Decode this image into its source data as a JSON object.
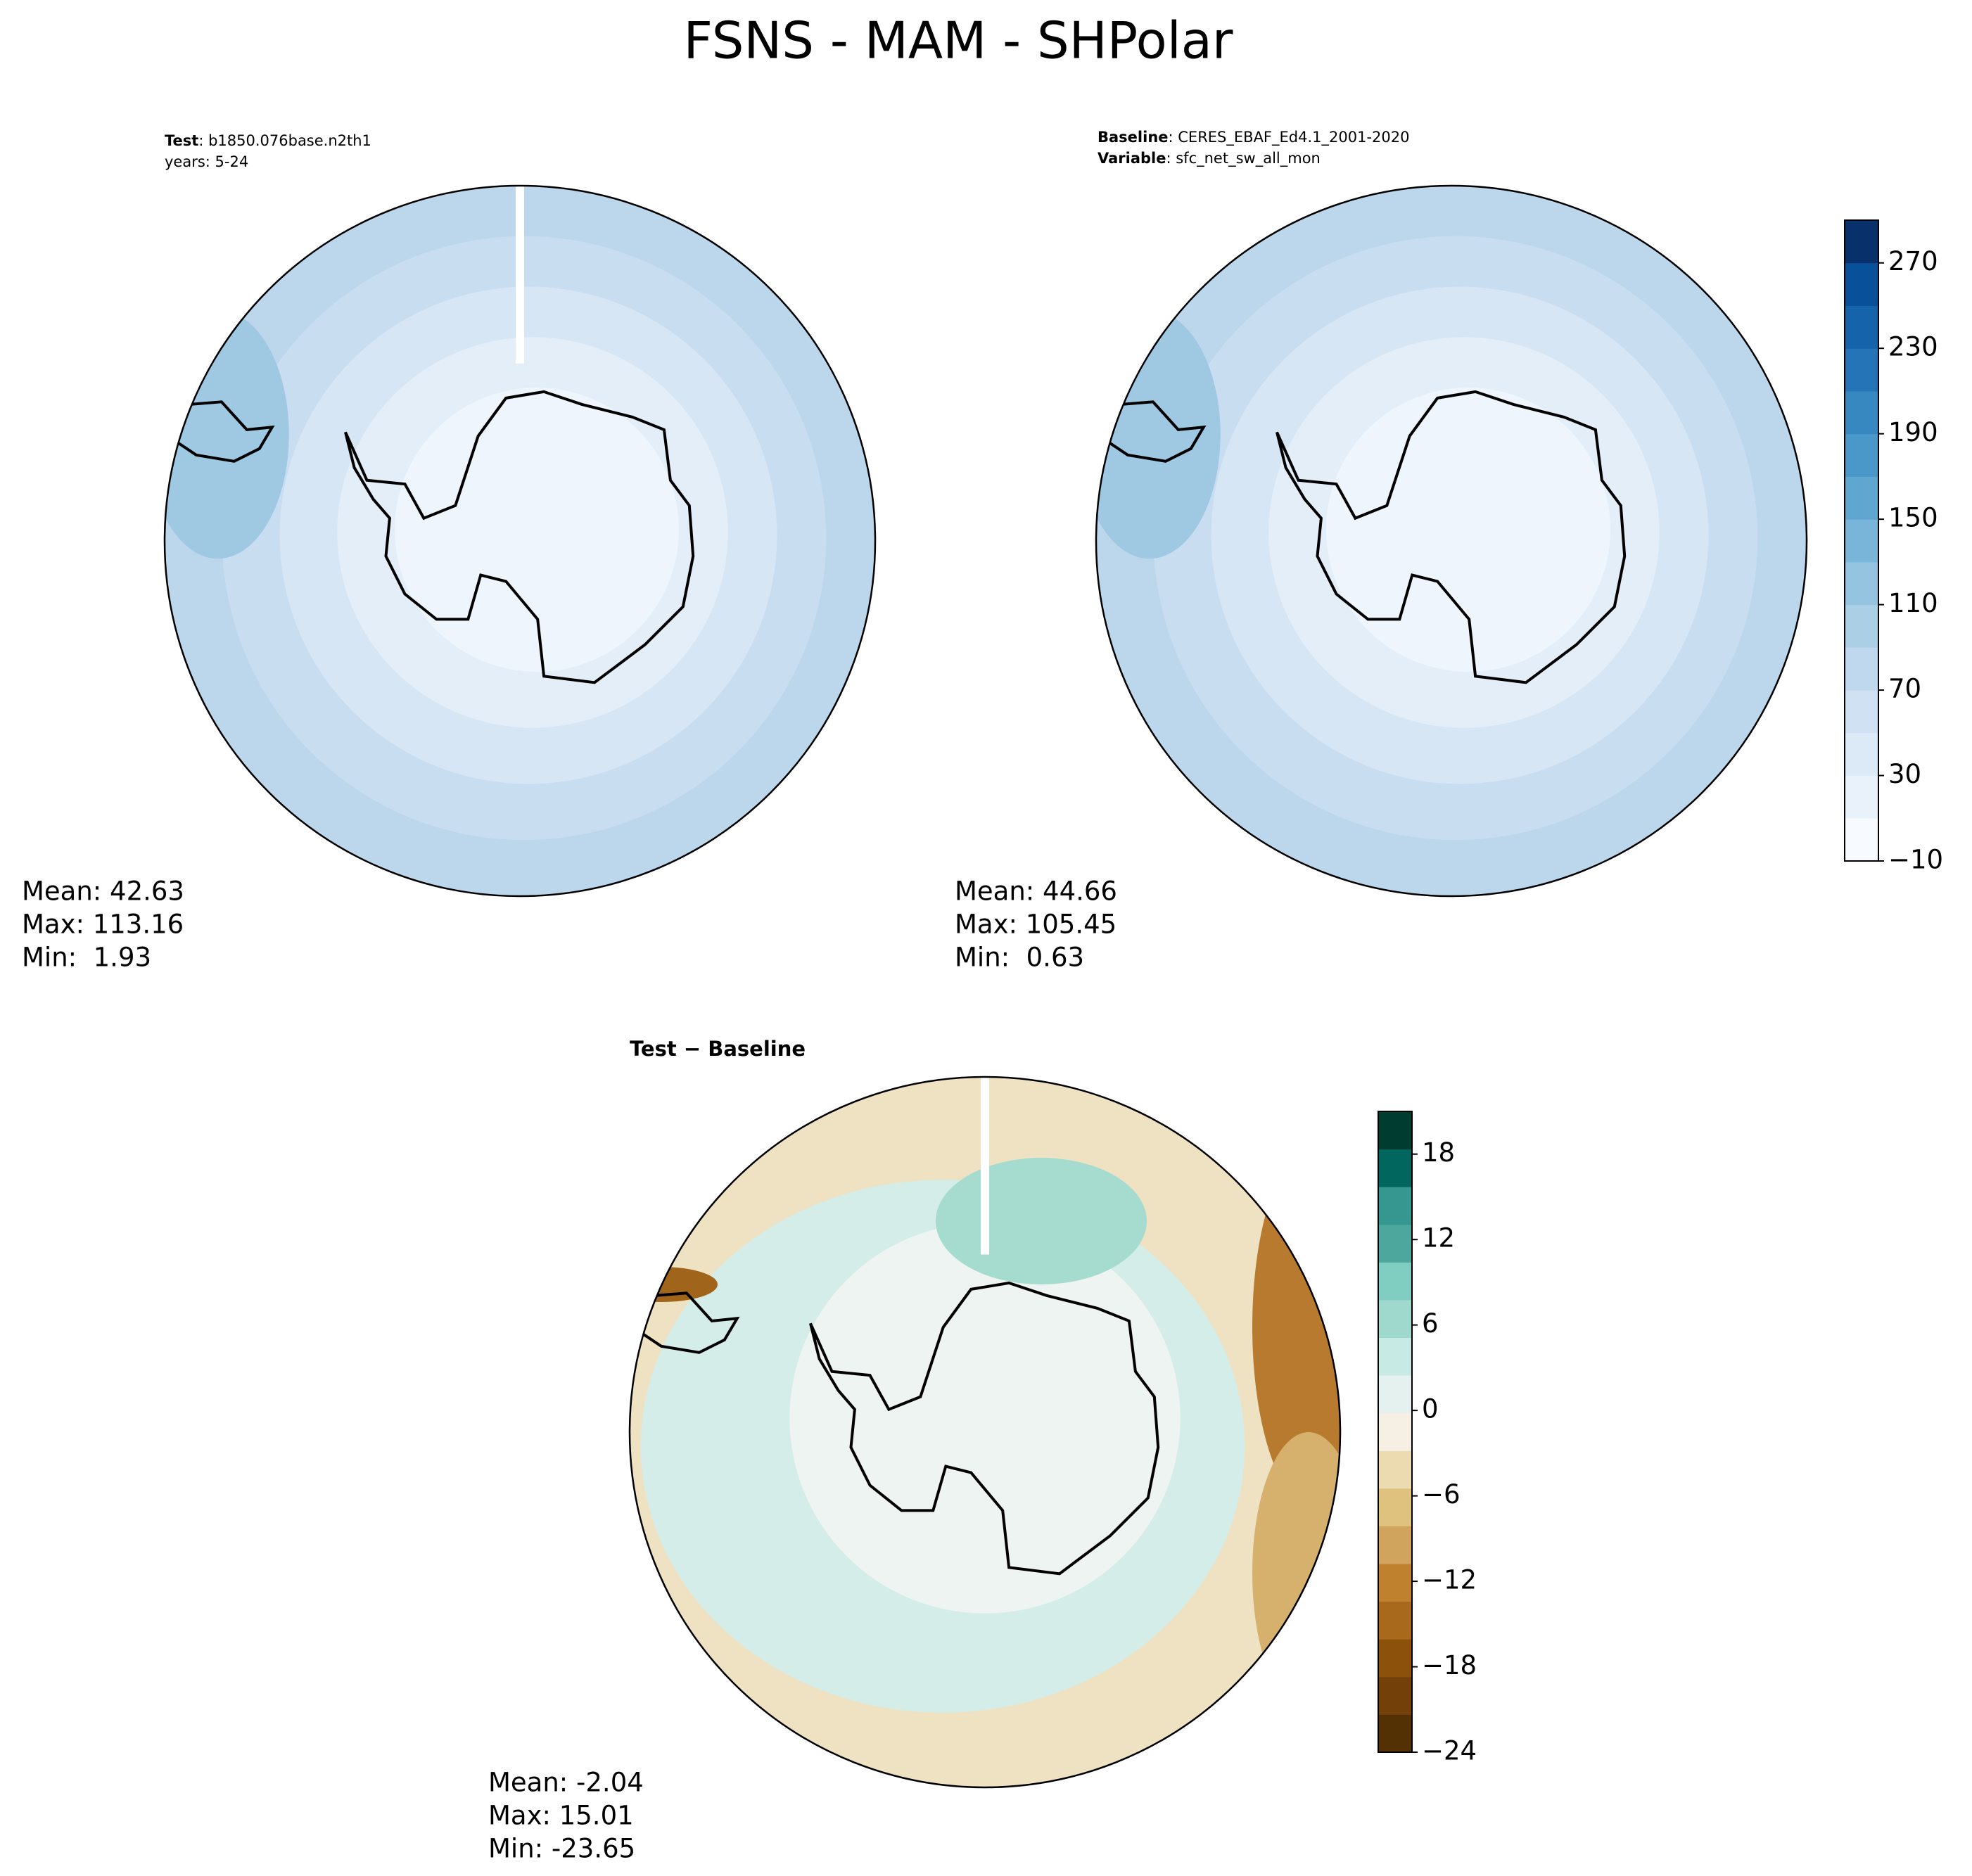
{
  "title": "FSNS - MAM - SHPolar",
  "panels": [
    {
      "info": [
        [
          "Test",
          ": b1850.076base.n2th1"
        ],
        [
          "years: 5-24"
        ]
      ],
      "stats": [
        "Mean: 42.63",
        "Max: 113.16",
        "Min:  1.93"
      ]
    },
    {
      "info": [
        [
          "Baseline",
          ": CERES_EBAF_Ed4.1_2001-2020"
        ],
        [
          "Variable",
          ": sfc_net_sw_all_mon"
        ]
      ],
      "stats": [
        "Mean: 44.66",
        "Max: 105.45",
        "Min:  0.63"
      ]
    },
    {
      "info": [
        [
          "Test − Baseline"
        ]
      ],
      "stats": [
        "Mean: -2.04",
        "Max: 15.01",
        "Min: -23.65"
      ]
    }
  ],
  "colorbars": [
    {
      "lim": [
        -10,
        290
      ],
      "ticks": [
        {
          "value": -10,
          "label": "−10"
        },
        30,
        70,
        110,
        150,
        190,
        230,
        270
      ],
      "colors": [
        "#f7fbff",
        "#e9f2fb",
        "#dce9f6",
        "#cfe1f2",
        "#bfd8ed",
        "#abd0e6",
        "#94c4df",
        "#79b5d9",
        "#5fa6d1",
        "#4a98c9",
        "#3787c0",
        "#2474b7",
        "#1563aa",
        "#09509a",
        "#08306b"
      ]
    },
    {
      "lim": [
        -24,
        21
      ],
      "ticks": [
        {
          "value": -24,
          "label": "−24"
        },
        {
          "value": -18,
          "label": "−18"
        },
        {
          "value": -12,
          "label": "−12"
        },
        {
          "value": -6,
          "label": "−6"
        },
        0,
        6,
        12,
        18
      ],
      "colors": [
        "#543005",
        "#744009",
        "#8c510a",
        "#a8691c",
        "#bf812d",
        "#d1a45e",
        "#dfc27d",
        "#ecdbb0",
        "#f5f0e3",
        "#e4f1ef",
        "#c7eae5",
        "#9fd8cd",
        "#80cdc1",
        "#4ea79c",
        "#35978f",
        "#01665e",
        "#003c30"
      ]
    }
  ]
}
